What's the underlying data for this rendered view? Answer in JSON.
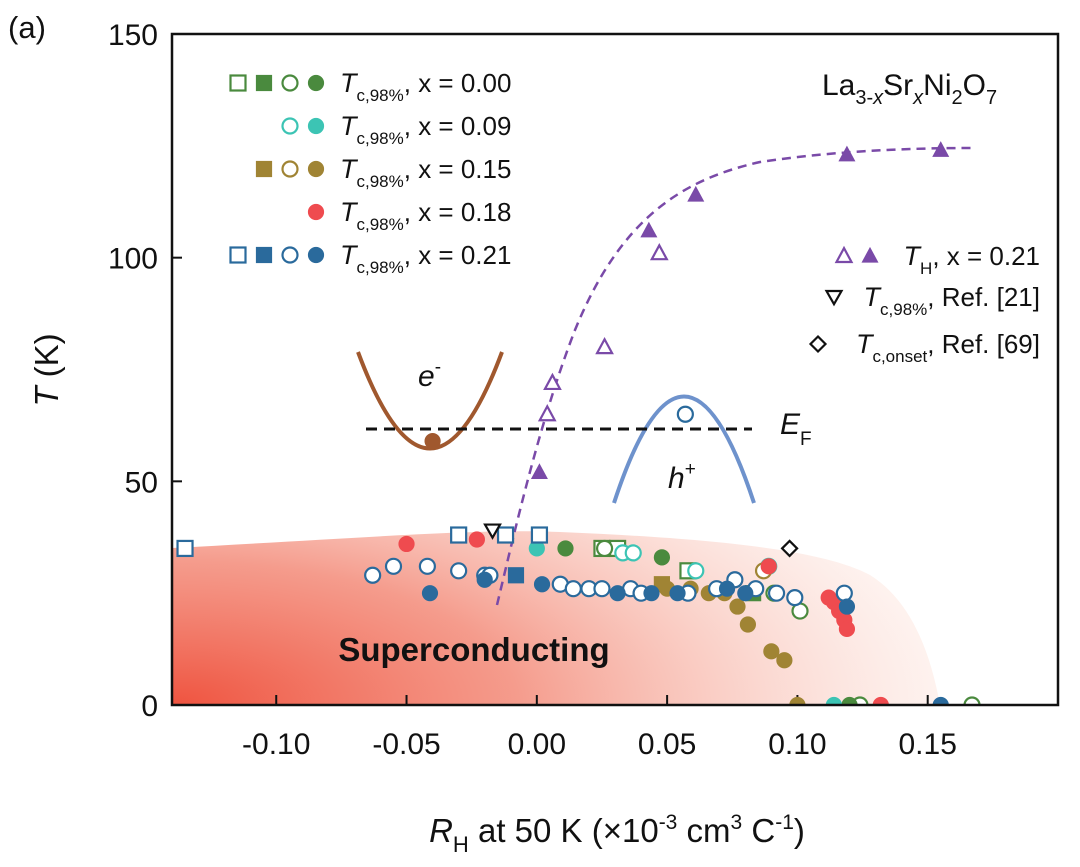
{
  "chart_data": {
    "type": "scatter",
    "panel_label": "(a)",
    "compound": {
      "p1": "La",
      "p2": "3-",
      "p3": "x",
      "p4": "Sr",
      "p5": "x",
      "p6": "Ni",
      "p7": "2",
      "p8": "O",
      "p9": "7"
    },
    "xlim": [
      -0.14,
      0.2
    ],
    "ylim": [
      0,
      150
    ],
    "x_ticks": [
      "-0.10",
      "-0.05",
      "0.00",
      "0.05",
      "0.10",
      "0.15"
    ],
    "x_tick_values": [
      -0.1,
      -0.05,
      0.0,
      0.05,
      0.1,
      0.15
    ],
    "y_ticks": [
      "0",
      "50",
      "100",
      "150"
    ],
    "y_tick_values": [
      0,
      50,
      100,
      150
    ],
    "xlabel": {
      "sym": "R",
      "sub": "H",
      "t1": " at 50 K (×10",
      "e1": "-3",
      "t2": " cm",
      "e2": "3",
      "t3": " C",
      "e3": "-1",
      "t4": ")"
    },
    "ylabel": {
      "sym": "T",
      "rest": " (K)"
    },
    "colors": {
      "x000": "#4a8a3e",
      "x009": "#3cc4b4",
      "x015": "#a08434",
      "x018": "#ef4b4f",
      "x021": "#2a6a9c",
      "hall": "#7a4aa8",
      "band_e": "#a0582e",
      "band_h": "#6e92cc",
      "sc_fill": "#ef5a48"
    },
    "legend_left": [
      {
        "sym": "T",
        "sub": "c,98%",
        "rest": ", x = 0.00",
        "color": "#4a8a3e",
        "markers": [
          "sq-open",
          "sq-filled",
          "circ-open",
          "circ-filled"
        ]
      },
      {
        "sym": "T",
        "sub": "c,98%",
        "rest": ", x = 0.09",
        "color": "#3cc4b4",
        "markers": [
          "circ-open",
          "circ-filled"
        ]
      },
      {
        "sym": "T",
        "sub": "c,98%",
        "rest": ", x = 0.15",
        "color": "#a08434",
        "markers": [
          "sq-filled",
          "circ-open",
          "circ-filled"
        ]
      },
      {
        "sym": "T",
        "sub": "c,98%",
        "rest": ", x = 0.18",
        "color": "#ef4b4f",
        "markers": [
          "circ-filled"
        ]
      },
      {
        "sym": "T",
        "sub": "c,98%",
        "rest": ", x = 0.21",
        "color": "#2a6a9c",
        "markers": [
          "sq-open",
          "sq-filled",
          "circ-open",
          "circ-filled"
        ]
      }
    ],
    "legend_right": [
      {
        "sym": "T",
        "sub": "H",
        "rest": ", x = 0.21",
        "color": "#7a4aa8",
        "markers": [
          "tri-open",
          "tri-filled"
        ]
      },
      {
        "sym": "T",
        "sub": "c,98%",
        "rest": ", Ref. [21]",
        "color": "#111111",
        "markers": [
          "tri-down-open"
        ]
      },
      {
        "sym": "T",
        "sub": "c,onset",
        "rest": ", Ref. [69]",
        "color": "#111111",
        "markers": [
          "diamond-open"
        ]
      }
    ],
    "region_label": "Superconducting",
    "inset": {
      "electron": "e",
      "electron_sup": "-",
      "hole": "h",
      "hole_sup": "+",
      "fermi": "E",
      "fermi_sub": "F"
    },
    "series": [
      {
        "name": "T_H, x = 0.21 (open)",
        "marker": "tri-open",
        "color": "#7a4aa8",
        "points": [
          [
            0.004,
            65
          ],
          [
            0.006,
            72
          ],
          [
            0.026,
            80
          ],
          [
            0.047,
            101
          ]
        ]
      },
      {
        "name": "T_H, x = 0.21 (filled)",
        "marker": "tri-filled",
        "color": "#7a4aa8",
        "points": [
          [
            0.001,
            52
          ],
          [
            0.043,
            106
          ],
          [
            0.061,
            114
          ],
          [
            0.119,
            123
          ],
          [
            0.155,
            124
          ]
        ]
      },
      {
        "name": "Tc,98%, x = 0.00 (open square)",
        "marker": "sq-open",
        "color": "#4a8a3e",
        "points": [
          [
            0.025,
            35
          ],
          [
            0.031,
            35
          ],
          [
            0.058,
            30
          ]
        ]
      },
      {
        "name": "Tc,98%, x = 0.00 (filled square)",
        "marker": "sq-filled",
        "color": "#4a8a3e",
        "points": [
          [
            0.083,
            25
          ]
        ]
      },
      {
        "name": "Tc,98%, x = 0.00 (open circle)",
        "marker": "circ-open",
        "color": "#4a8a3e",
        "points": [
          [
            0.026,
            35
          ],
          [
            0.091,
            25
          ],
          [
            0.101,
            21
          ],
          [
            0.124,
            0
          ],
          [
            0.167,
            0
          ]
        ]
      },
      {
        "name": "Tc,98%, x = 0.00 (filled circle)",
        "marker": "circ-filled",
        "color": "#4a8a3e",
        "points": [
          [
            0.011,
            35
          ],
          [
            0.048,
            33
          ],
          [
            0.12,
            0
          ]
        ]
      },
      {
        "name": "Tc,98%, x = 0.09 (open circle)",
        "marker": "circ-open",
        "color": "#3cc4b4",
        "points": [
          [
            0.033,
            34
          ],
          [
            0.037,
            34
          ],
          [
            0.061,
            30
          ],
          [
            0.089,
            31
          ]
        ]
      },
      {
        "name": "Tc,98%, x = 0.09 (filled circle)",
        "marker": "circ-filled",
        "color": "#3cc4b4",
        "points": [
          [
            0.0,
            35
          ],
          [
            0.114,
            0
          ]
        ]
      },
      {
        "name": "Tc,98%, x = 0.15 (filled square)",
        "marker": "sq-filled",
        "color": "#a08434",
        "points": [
          [
            0.048,
            27
          ]
        ]
      },
      {
        "name": "Tc,98%, x = 0.15 (open circle)",
        "marker": "circ-open",
        "color": "#a08434",
        "points": [
          [
            0.087,
            30
          ]
        ]
      },
      {
        "name": "Tc,98%, x = 0.15 (filled circle)",
        "marker": "circ-filled",
        "color": "#a08434",
        "points": [
          [
            0.05,
            26
          ],
          [
            0.059,
            26
          ],
          [
            0.066,
            25
          ],
          [
            0.072,
            25
          ],
          [
            0.077,
            22
          ],
          [
            0.081,
            18
          ],
          [
            0.09,
            12
          ],
          [
            0.095,
            10
          ],
          [
            0.1,
            0
          ]
        ]
      },
      {
        "name": "Tc,98%, x = 0.18 (filled circle)",
        "marker": "circ-filled",
        "color": "#ef4b4f",
        "points": [
          [
            -0.05,
            36
          ],
          [
            -0.023,
            37
          ],
          [
            0.089,
            31
          ],
          [
            0.112,
            24
          ],
          [
            0.114,
            23
          ],
          [
            0.116,
            21
          ],
          [
            0.118,
            19
          ],
          [
            0.119,
            17
          ],
          [
            0.132,
            0
          ]
        ]
      },
      {
        "name": "Tc,98%, x = 0.21 (open square)",
        "marker": "sq-open",
        "color": "#2a6a9c",
        "points": [
          [
            -0.135,
            35
          ],
          [
            -0.03,
            38
          ],
          [
            -0.012,
            38
          ],
          [
            0.001,
            38
          ]
        ]
      },
      {
        "name": "Tc,98%, x = 0.21 (filled square)",
        "marker": "sq-filled",
        "color": "#2a6a9c",
        "points": [
          [
            -0.008,
            29
          ]
        ]
      },
      {
        "name": "Tc,98%, x = 0.21 (open circle)",
        "marker": "circ-open",
        "color": "#2a6a9c",
        "points": [
          [
            -0.063,
            29
          ],
          [
            -0.055,
            31
          ],
          [
            -0.042,
            31
          ],
          [
            -0.03,
            30
          ],
          [
            -0.02,
            29
          ],
          [
            -0.018,
            29
          ],
          [
            0.009,
            27
          ],
          [
            0.014,
            26
          ],
          [
            0.02,
            26
          ],
          [
            0.025,
            26
          ],
          [
            0.036,
            26
          ],
          [
            0.04,
            25
          ],
          [
            0.058,
            25
          ],
          [
            0.069,
            26
          ],
          [
            0.076,
            28
          ],
          [
            0.084,
            26
          ],
          [
            0.092,
            25
          ],
          [
            0.099,
            24
          ],
          [
            0.118,
            25
          ],
          [
            0.057,
            65
          ]
        ]
      },
      {
        "name": "Tc,98%, x = 0.21 (filled circle)",
        "marker": "circ-filled",
        "color": "#2a6a9c",
        "points": [
          [
            -0.041,
            25
          ],
          [
            -0.02,
            28
          ],
          [
            0.002,
            27
          ],
          [
            0.031,
            25
          ],
          [
            0.044,
            25
          ],
          [
            0.054,
            25
          ],
          [
            0.073,
            26
          ],
          [
            0.08,
            25
          ],
          [
            0.119,
            22
          ],
          [
            0.155,
            0
          ]
        ]
      },
      {
        "name": "Tc,98%, Ref. [21]",
        "marker": "tri-down-open",
        "color": "#111111",
        "points": [
          [
            -0.017,
            39
          ]
        ]
      },
      {
        "name": "Tc,onset, Ref. [69]",
        "marker": "diamond-open",
        "color": "#111111",
        "points": [
          [
            0.097,
            35
          ]
        ]
      },
      {
        "name": "electron pocket marker",
        "marker": "circ-filled",
        "color": "#a0582e",
        "points": [
          [
            -0.04,
            59
          ]
        ]
      }
    ]
  }
}
